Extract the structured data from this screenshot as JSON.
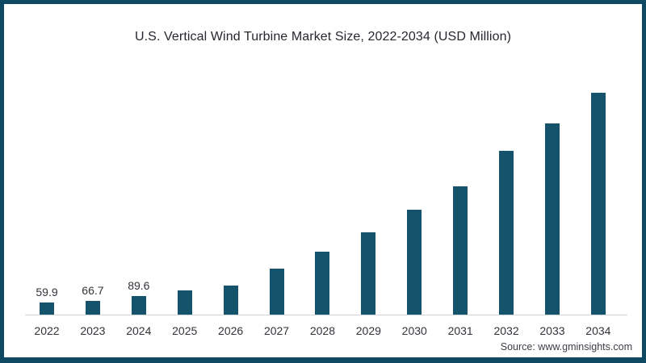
{
  "title": "U.S. Vertical Wind Turbine Market Size, 2022-2034 (USD Million)",
  "source": "Source: www.gminsights.com",
  "colors": {
    "bar": "#15536d",
    "frame": "#0e4b63",
    "axis": "#cfd3d6"
  },
  "chart_data": {
    "type": "bar",
    "title": "U.S. Vertical Wind Turbine Market Size, 2022-2034 (USD Million)",
    "unit": "USD Million",
    "categories": [
      "2022",
      "2023",
      "2024",
      "2025",
      "2026",
      "2027",
      "2028",
      "2029",
      "2030",
      "2031",
      "2032",
      "2033",
      "2034"
    ],
    "values": [
      59.9,
      66.7,
      89.6,
      117,
      140,
      221,
      305,
      397,
      508,
      619,
      790,
      923,
      1073
    ],
    "data_labels": [
      "59.9",
      "66.7",
      "89.6",
      "",
      "",
      "",
      "",
      "",
      "",
      "",
      "",
      "",
      ""
    ],
    "ylim": [
      0,
      1170
    ],
    "grid": false,
    "legend": false
  }
}
